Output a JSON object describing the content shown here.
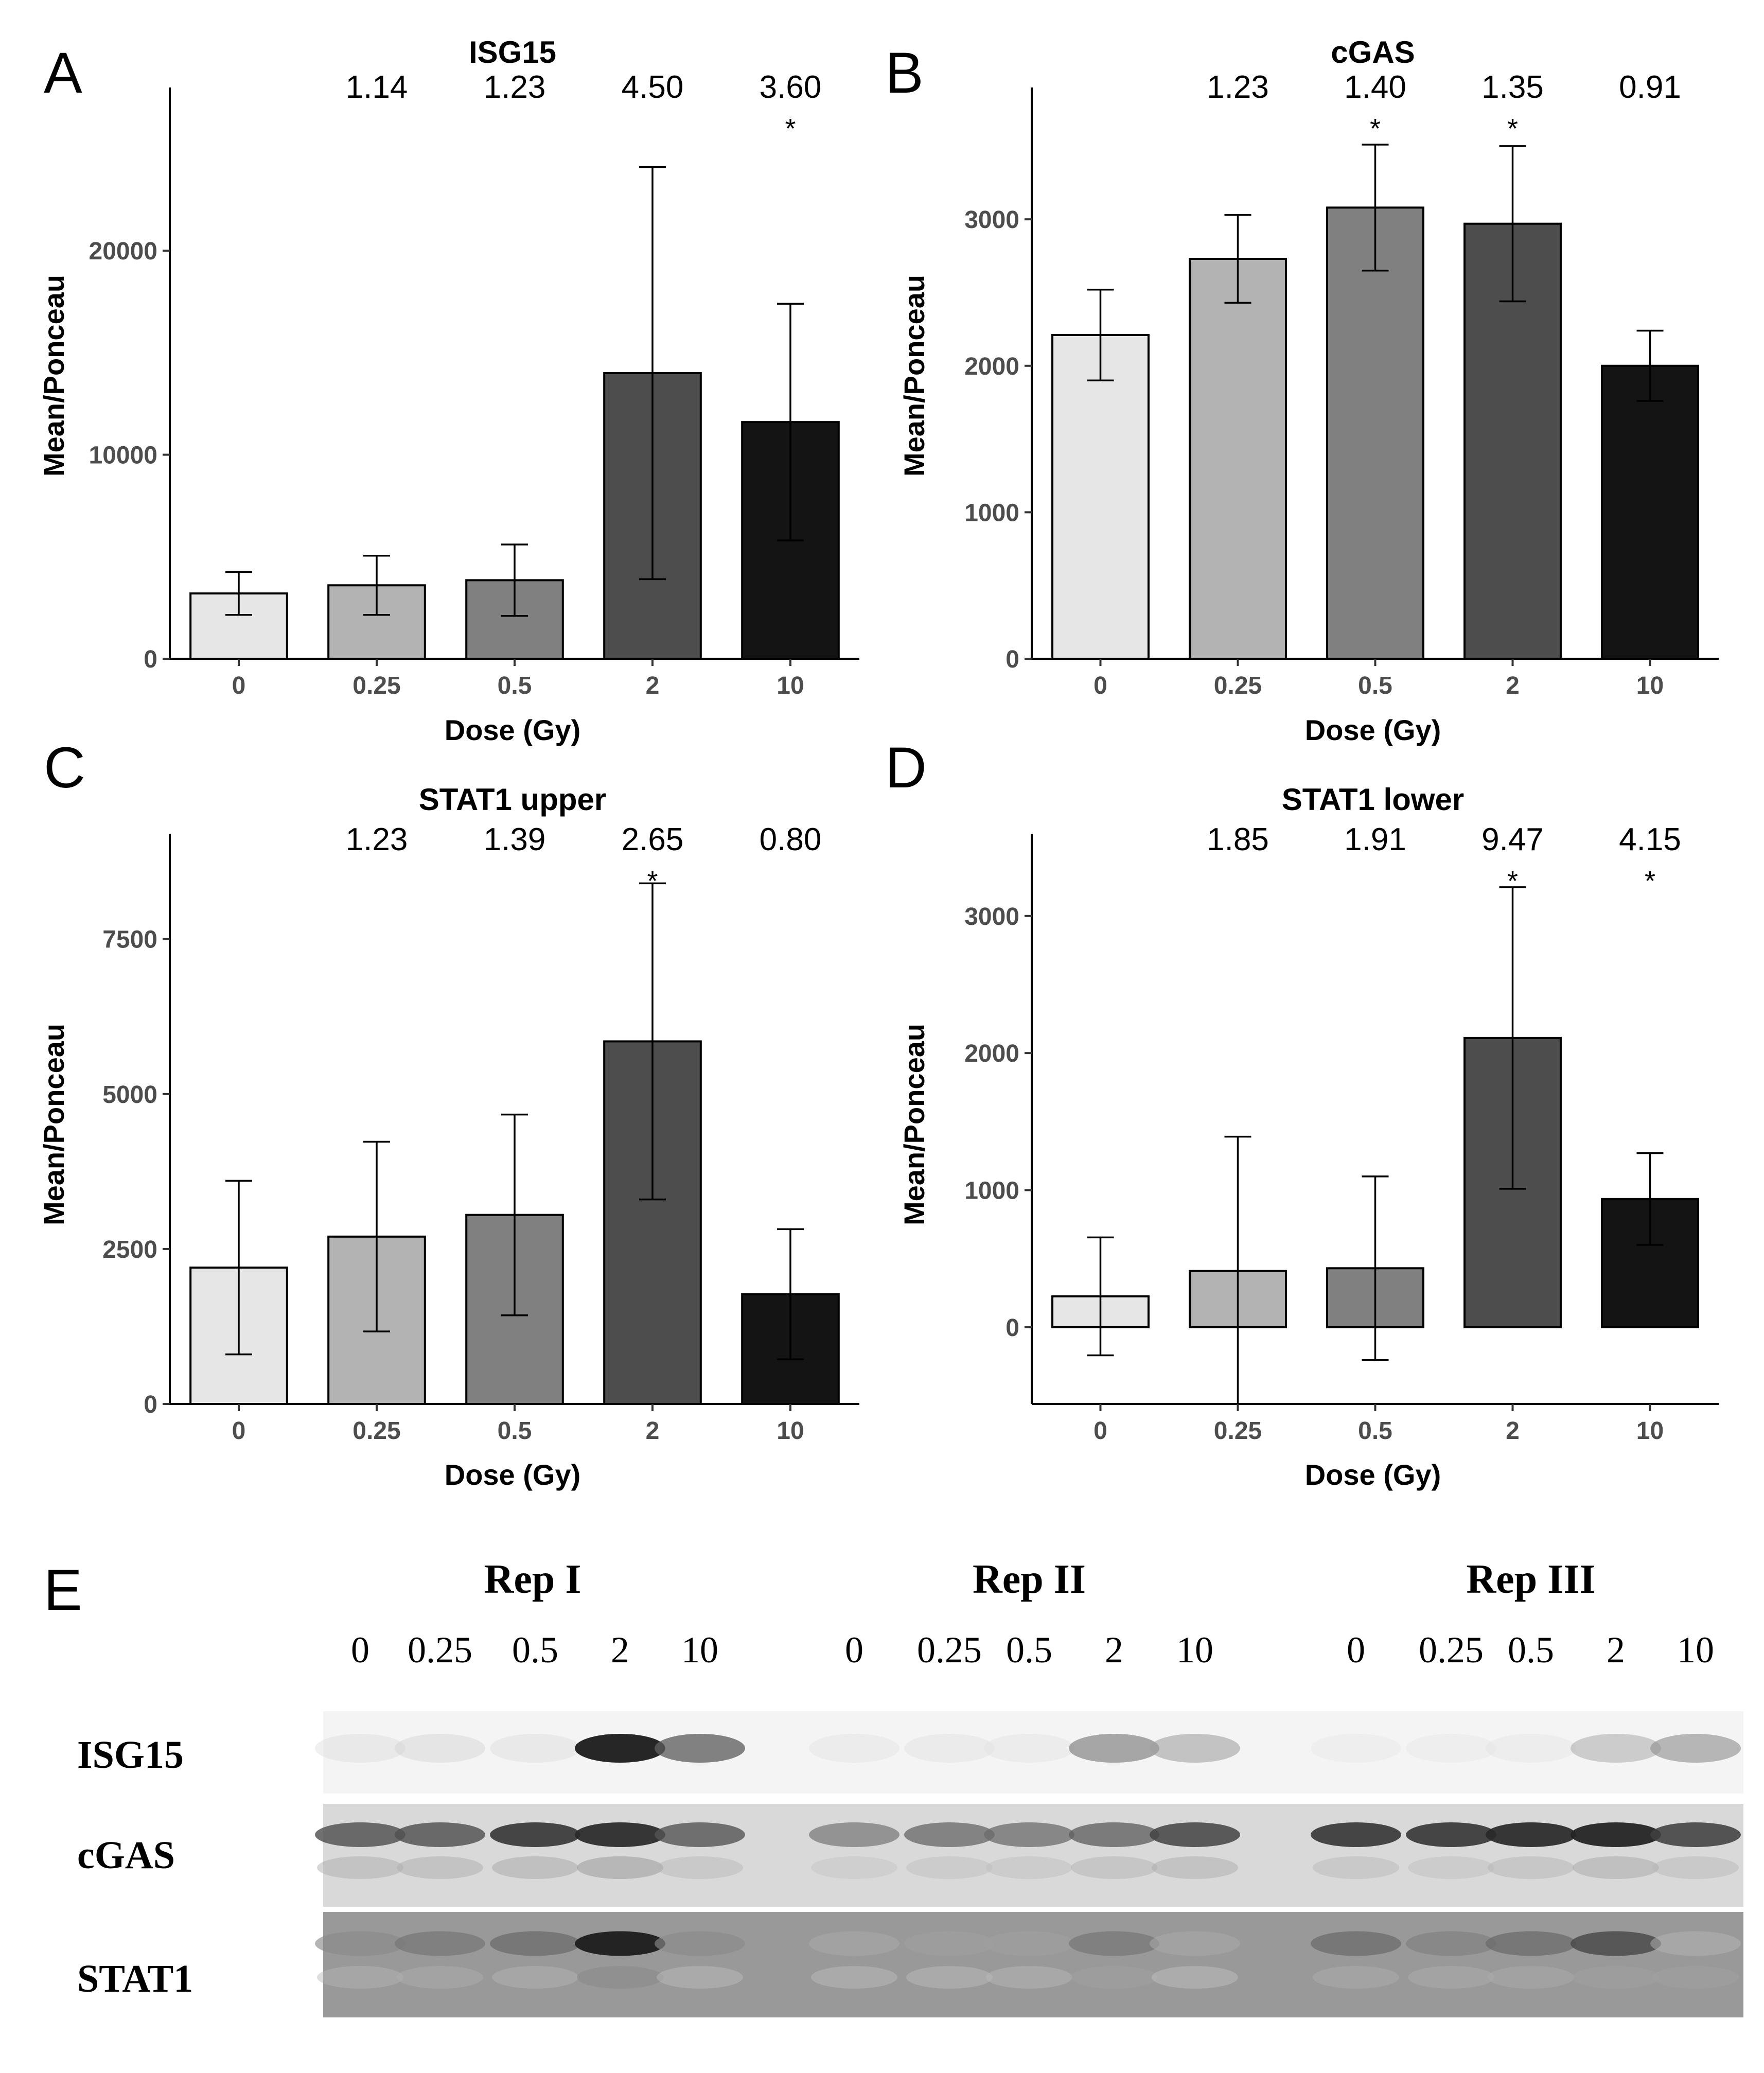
{
  "chart_data": [
    {
      "panel": "A",
      "type": "bar",
      "title": "ISG15",
      "xlabel": "Dose (Gy)",
      "ylabel": "Mean/Ponceau",
      "categories": [
        "0",
        "0.25",
        "0.5",
        "2",
        "10"
      ],
      "values": [
        3200,
        3600,
        3850,
        14000,
        11600
      ],
      "errors": [
        1050,
        1450,
        1750,
        10100,
        5800
      ],
      "fold_changes": [
        "",
        "1.14",
        "1.23",
        "4.50",
        "3.60"
      ],
      "significance": [
        "",
        "",
        "",
        "",
        "*"
      ],
      "colors": [
        "#e6e6e6",
        "#b3b3b3",
        "#808080",
        "#4d4d4d",
        "#141414"
      ],
      "ylim": [
        0,
        28000
      ],
      "yticks": [
        0,
        10000,
        20000
      ],
      "ytick_labels": [
        "0",
        "10000",
        "20000"
      ]
    },
    {
      "panel": "B",
      "type": "bar",
      "title": "cGAS",
      "xlabel": "Dose (Gy)",
      "ylabel": "Mean/Ponceau",
      "categories": [
        "0",
        "0.25",
        "0.5",
        "2",
        "10"
      ],
      "values": [
        2210,
        2730,
        3080,
        2970,
        2000
      ],
      "errors": [
        310,
        300,
        430,
        530,
        240
      ],
      "fold_changes": [
        "",
        "1.23",
        "1.40",
        "1.35",
        "0.91"
      ],
      "significance": [
        "",
        "",
        "*",
        "*",
        ""
      ],
      "colors": [
        "#e6e6e6",
        "#b3b3b3",
        "#808080",
        "#4d4d4d",
        "#141414"
      ],
      "ylim": [
        0,
        3900
      ],
      "yticks": [
        0,
        1000,
        2000,
        3000
      ],
      "ytick_labels": [
        "0",
        "1000",
        "2000",
        "3000"
      ]
    },
    {
      "panel": "C",
      "type": "bar",
      "title": "STAT1 upper",
      "xlabel": "Dose (Gy)",
      "ylabel": "Mean/Ponceau",
      "categories": [
        "0",
        "0.25",
        "0.5",
        "2",
        "10"
      ],
      "values": [
        2200,
        2700,
        3050,
        5850,
        1770
      ],
      "errors": [
        1400,
        1530,
        1620,
        2550,
        1050
      ],
      "fold_changes": [
        "",
        "1.23",
        "1.39",
        "2.65",
        "0.80"
      ],
      "significance": [
        "",
        "",
        "",
        "*",
        ""
      ],
      "colors": [
        "#e6e6e6",
        "#b3b3b3",
        "#808080",
        "#4d4d4d",
        "#141414"
      ],
      "ylim": [
        0,
        9200
      ],
      "yticks": [
        0,
        2500,
        5000,
        7500
      ],
      "ytick_labels": [
        "0",
        "2500",
        "5000",
        "7500"
      ]
    },
    {
      "panel": "D",
      "type": "bar",
      "title": "STAT1 lower",
      "xlabel": "Dose (Gy)",
      "ylabel": "Mean/Ponceau",
      "categories": [
        "0",
        "0.25",
        "0.5",
        "2",
        "10"
      ],
      "values": [
        225,
        410,
        430,
        2110,
        935
      ],
      "errors": [
        430,
        980,
        670,
        1100,
        335
      ],
      "fold_changes": [
        "",
        "1.85",
        "1.91",
        "9.47",
        "4.15"
      ],
      "significance": [
        "",
        "",
        "",
        "*",
        "*"
      ],
      "colors": [
        "#e6e6e6",
        "#b3b3b3",
        "#808080",
        "#4d4d4d",
        "#141414"
      ],
      "ylim": [
        -560,
        3600
      ],
      "yticks": [
        0,
        1000,
        2000,
        3000
      ],
      "ytick_labels": [
        "0",
        "1000",
        "2000",
        "3000"
      ]
    }
  ],
  "blot": {
    "panel": "E",
    "replicates": [
      "Rep I",
      "Rep II",
      "Rep III"
    ],
    "lanes": [
      "0",
      "0.25",
      "0.5",
      "2",
      "10"
    ],
    "rows": [
      {
        "name": "ISG15",
        "background": "#f4f4f4",
        "upper_intensity": [
          0.08,
          0.12,
          0.08,
          0.95,
          0.65,
          0.05,
          0.06,
          0.05,
          0.5,
          0.35,
          0.03,
          0.03,
          0.04,
          0.3,
          0.42
        ],
        "lower_intensity": []
      },
      {
        "name": "cGAS",
        "background": "#d9d9d9",
        "upper_intensity": [
          0.72,
          0.72,
          0.85,
          0.9,
          0.7,
          0.55,
          0.62,
          0.6,
          0.65,
          0.78,
          0.85,
          0.85,
          0.9,
          0.92,
          0.8
        ],
        "lower_intensity": [
          0.3,
          0.3,
          0.32,
          0.38,
          0.25,
          0.2,
          0.22,
          0.22,
          0.28,
          0.3,
          0.25,
          0.22,
          0.26,
          0.32,
          0.25
        ]
      },
      {
        "name": "STAT1",
        "background": "#999999",
        "upper_intensity": [
          0.45,
          0.55,
          0.6,
          0.95,
          0.45,
          0.3,
          0.35,
          0.35,
          0.55,
          0.3,
          0.6,
          0.5,
          0.6,
          0.75,
          0.25
        ],
        "lower_intensity": [
          0.25,
          0.28,
          0.25,
          0.45,
          0.2,
          0.2,
          0.2,
          0.22,
          0.35,
          0.15,
          0.28,
          0.28,
          0.3,
          0.35,
          0.35
        ]
      }
    ]
  }
}
